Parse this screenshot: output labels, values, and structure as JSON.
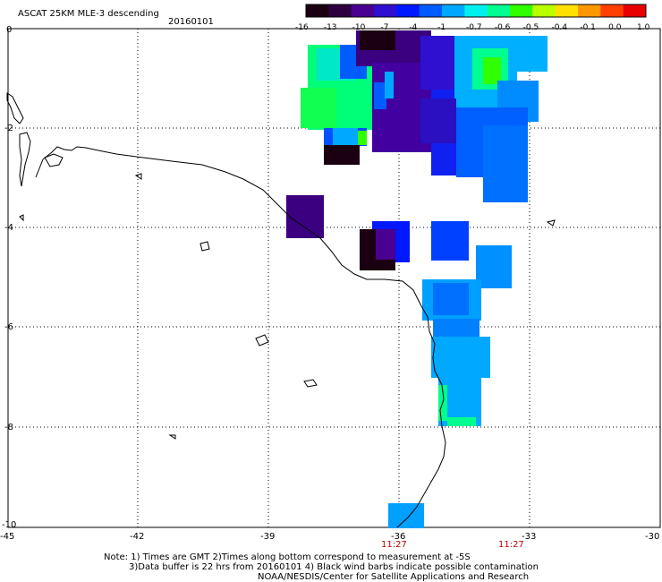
{
  "header": {
    "title": "ASCAT 25KM MLE-3 descending",
    "date": "20160101"
  },
  "colorbar": {
    "labels": [
      "-16",
      "-13",
      "-10",
      "-7",
      "-4",
      "-1",
      "-0.7",
      "-0.6",
      "-0.5",
      "-0.4",
      "-0.1",
      "0.0",
      "1.0"
    ],
    "colors": [
      "#1a0010",
      "#2e0040",
      "#4a0090",
      "#3010d0",
      "#0018ff",
      "#005cff",
      "#00a8ff",
      "#00f0f0",
      "#00ff90",
      "#30ff00",
      "#b8ff00",
      "#ffe000",
      "#ff9800",
      "#ff4000",
      "#e80000"
    ]
  },
  "map": {
    "lon_labels": [
      "-45",
      "-42",
      "-39",
      "-36",
      "-33",
      "-30"
    ],
    "lat_labels": [
      "0",
      "-2",
      "-4",
      "-6",
      "-8",
      "-10"
    ],
    "time_labels": [
      "11:27",
      "11:27"
    ]
  },
  "footer": {
    "line1": "Note: 1) Times are GMT 2)Times along bottom correspond to measurement at -5S",
    "line2": "3)Data buffer is 22 hrs from 20160101 4) Black wind barbs indicate possible contamination",
    "line3": "NOAA/NESDIS/Center for Satellite Applications and Research"
  }
}
